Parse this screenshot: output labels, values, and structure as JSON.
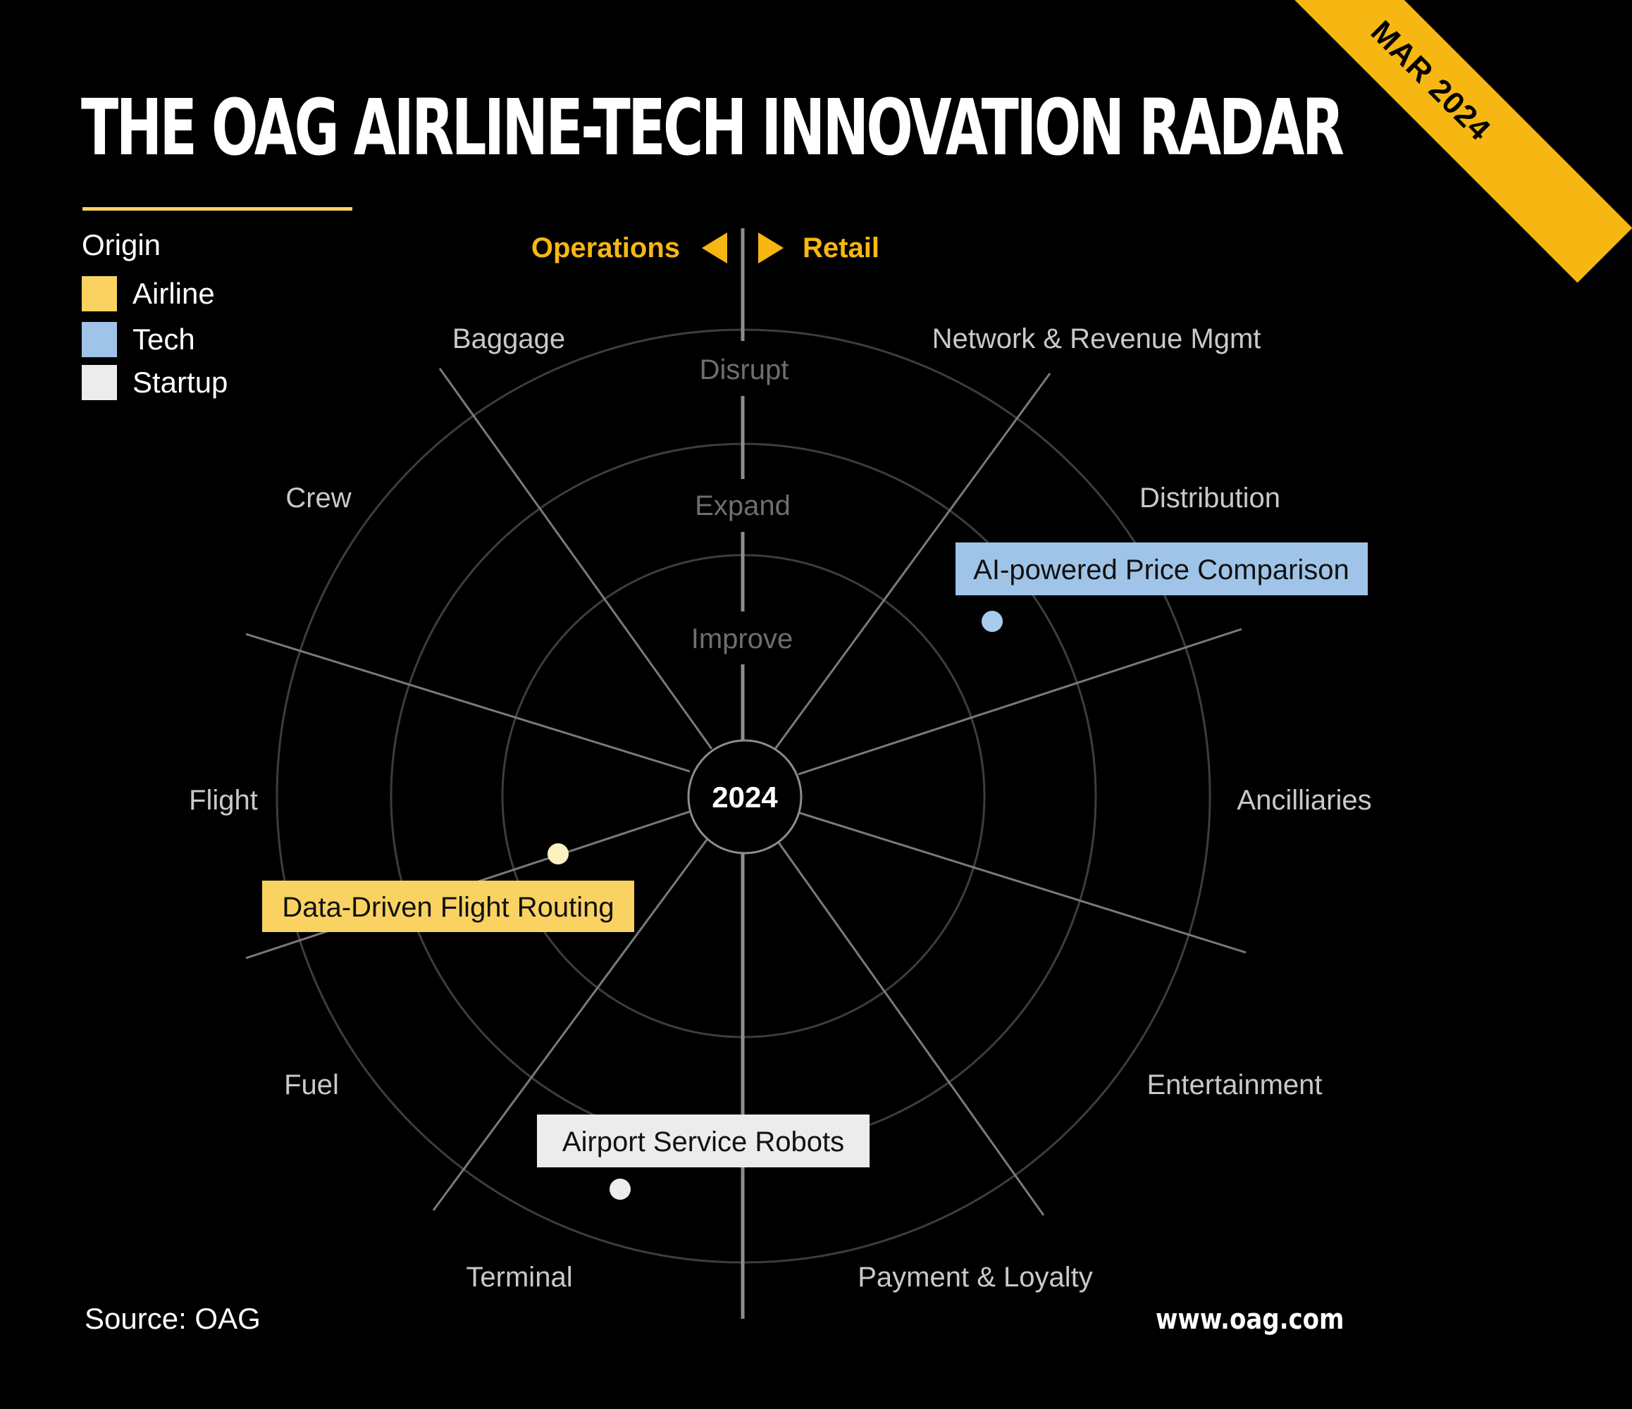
{
  "title": "THE OAG AIRLINE-TECH INNOVATION RADAR",
  "corner_badge": "MAR 2024",
  "legend": {
    "title": "Origin",
    "items": [
      {
        "label": "Airline",
        "color": "#f9d262"
      },
      {
        "label": "Tech",
        "color": "#9fc4e8"
      },
      {
        "label": "Startup",
        "color": "#ececec"
      }
    ]
  },
  "direction": {
    "left": "Operations",
    "right": "Retail",
    "color": "#f7b712"
  },
  "center_label": "2024",
  "rings": [
    "Improve",
    "Expand",
    "Disrupt"
  ],
  "categories": {
    "baggage": "Baggage",
    "network": "Network & Revenue Mgmt",
    "crew": "Crew",
    "distribution": "Distribution",
    "flight": "Flight",
    "ancillaries": "Ancilliaries",
    "fuel": "Fuel",
    "entertainment": "Entertainment",
    "terminal": "Terminal",
    "payment": "Payment & Loyalty"
  },
  "innovations": [
    {
      "label": "AI-powered Price Comparison",
      "origin": "Tech",
      "color": "#9fc4e8",
      "dot_color": "#a9cbee"
    },
    {
      "label": "Data-Driven Flight Routing",
      "origin": "Airline",
      "color": "#f9d262",
      "dot_color": "#fdf1c2"
    },
    {
      "label": "Airport Service Robots",
      "origin": "Startup",
      "color": "#ececec",
      "dot_color": "#ededed"
    }
  ],
  "source": "Source: OAG",
  "website": "www.oag.com"
}
